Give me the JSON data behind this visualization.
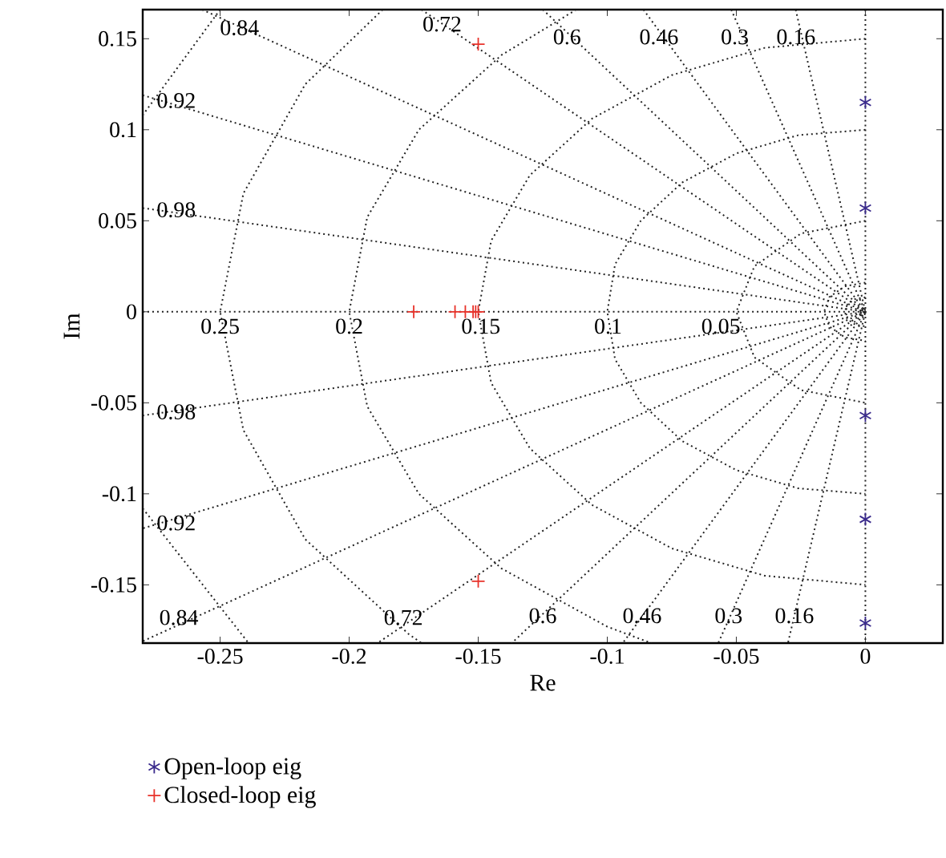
{
  "chart_data": {
    "type": "scatter",
    "xlabel": "Re",
    "ylabel": "Im",
    "xlim": [
      -0.28,
      0.03
    ],
    "ylim": [
      -0.182,
      0.166
    ],
    "xticks": [
      -0.25,
      -0.2,
      -0.15,
      -0.1,
      -0.05,
      0
    ],
    "yticks": [
      -0.15,
      -0.1,
      -0.05,
      0,
      0.05,
      0.1,
      0.15
    ],
    "legend": "bottom",
    "series": [
      {
        "type": "line",
        "color": "#222222",
        "line_style": "dotted",
        "marker": "none",
        "x": [
          -0.027,
          0,
          -0.03
        ],
        "values": [
          0.166,
          0,
          -0.182
        ]
      },
      {
        "type": "line",
        "color": "#222222",
        "line_style": "dotted",
        "marker": "none",
        "x": [
          -0.052,
          0,
          -0.057
        ],
        "values": [
          0.166,
          0,
          -0.182
        ]
      },
      {
        "type": "line",
        "color": "#222222",
        "line_style": "dotted",
        "marker": "none",
        "x": [
          -0.086,
          0,
          -0.094
        ],
        "values": [
          0.166,
          0,
          -0.182
        ]
      },
      {
        "type": "line",
        "color": "#222222",
        "line_style": "dotted",
        "marker": "none",
        "x": [
          -0.125,
          0,
          -0.137
        ],
        "values": [
          0.166,
          0,
          -0.182
        ]
      },
      {
        "type": "line",
        "color": "#222222",
        "line_style": "dotted",
        "marker": "none",
        "x": [
          -0.172,
          0,
          -0.189
        ],
        "values": [
          0.166,
          0,
          -0.182
        ]
      },
      {
        "type": "line",
        "color": "#222222",
        "line_style": "dotted",
        "marker": "none",
        "x": [
          -0.257,
          0,
          -0.28
        ],
        "values": [
          0.166,
          0,
          -0.181
        ]
      },
      {
        "type": "line",
        "color": "#222222",
        "line_style": "dotted",
        "marker": "none",
        "x": [
          -0.28,
          0,
          -0.28
        ],
        "values": [
          0.119,
          0,
          -0.119
        ]
      },
      {
        "type": "line",
        "color": "#222222",
        "line_style": "dotted",
        "marker": "none",
        "x": [
          -0.28,
          0,
          -0.28
        ],
        "values": [
          0.057,
          0,
          -0.057
        ]
      },
      {
        "type": "line",
        "color": "#222222",
        "line_style": "dotted",
        "marker": "none",
        "x": [
          -0.28,
          0
        ],
        "values": [
          0,
          0
        ]
      },
      {
        "type": "line",
        "color": "#222222",
        "line_style": "dotted",
        "marker": "none",
        "x": [
          0,
          0
        ],
        "values": [
          0.166,
          -0.182
        ]
      },
      {
        "type": "line",
        "color": "#222222",
        "line_style": "dotted",
        "marker": "none",
        "x": [
          -0.25,
          -0.28,
          null,
          -0.28,
          -0.239
        ],
        "values": [
          0.166,
          0.108,
          null,
          -0.108,
          -0.182
        ]
      },
      {
        "type": "line",
        "color": "#222222",
        "line_style": "dotted",
        "marker": "none",
        "x": [
          -0.187,
          -0.217,
          -0.241,
          -0.25,
          -0.241,
          -0.217,
          -0.177,
          -0.172
        ],
        "values": [
          0.166,
          0.125,
          0.065,
          0,
          -0.065,
          -0.125,
          -0.177,
          -0.182
        ]
      },
      {
        "type": "line",
        "color": "#222222",
        "line_style": "dotted",
        "marker": "none",
        "x": [
          -0.112,
          -0.141,
          -0.173,
          -0.193,
          -0.2,
          -0.193,
          -0.173,
          -0.141,
          -0.1,
          -0.083
        ],
        "values": [
          0.166,
          0.141,
          0.1,
          0.052,
          0,
          -0.052,
          -0.1,
          -0.141,
          -0.173,
          -0.182
        ]
      },
      {
        "type": "line",
        "color": "#222222",
        "line_style": "dotted",
        "marker": "none",
        "x": [
          0,
          -0.039,
          -0.075,
          -0.106,
          -0.13,
          -0.145,
          -0.15,
          -0.145,
          -0.13,
          -0.106,
          -0.075,
          -0.039,
          0
        ],
        "values": [
          0.15,
          0.145,
          0.13,
          0.106,
          0.075,
          0.039,
          0,
          -0.039,
          -0.075,
          -0.106,
          -0.13,
          -0.145,
          -0.15
        ]
      },
      {
        "type": "line",
        "color": "#222222",
        "line_style": "dotted",
        "marker": "none",
        "x": [
          0,
          -0.026,
          -0.05,
          -0.071,
          -0.087,
          -0.097,
          -0.1,
          -0.097,
          -0.087,
          -0.071,
          -0.05,
          -0.026,
          0
        ],
        "values": [
          0.1,
          0.097,
          0.087,
          0.071,
          0.05,
          0.026,
          0,
          -0.026,
          -0.05,
          -0.071,
          -0.087,
          -0.097,
          -0.1
        ]
      },
      {
        "type": "line",
        "color": "#222222",
        "line_style": "dotted",
        "marker": "none",
        "x": [
          0,
          -0.025,
          -0.043,
          -0.05,
          -0.043,
          -0.025,
          0
        ],
        "values": [
          0.05,
          0.043,
          0.025,
          0,
          -0.025,
          -0.043,
          -0.05
        ]
      },
      {
        "type": "line",
        "color": "#222222",
        "line_style": "dotted",
        "marker": "none",
        "x": [
          0,
          -0.008,
          -0.014,
          -0.016,
          -0.014,
          -0.008,
          0
        ],
        "values": [
          0.016,
          0.014,
          0.008,
          0,
          -0.008,
          -0.014,
          -0.016
        ]
      },
      {
        "type": "line",
        "color": "#222222",
        "line_style": "dotted",
        "marker": "none",
        "x": [
          0,
          -0.004,
          -0.007,
          -0.008,
          -0.007,
          -0.004,
          0
        ],
        "values": [
          0.008,
          0.007,
          0.004,
          0,
          -0.004,
          -0.007,
          -0.008
        ]
      },
      {
        "name": "Open-loop eig",
        "color": "#3a2a8c",
        "x": [
          0,
          0,
          0,
          0,
          0
        ],
        "values": [
          0.115,
          0.057,
          -0.057,
          -0.114,
          -0.171
        ]
      },
      {
        "name": "Closed-loop eig",
        "color": "#e8322a",
        "marker": "cross",
        "x": [
          -0.15,
          -0.15,
          -0.175,
          -0.159,
          -0.155,
          -0.152,
          -0.151,
          -0.15
        ],
        "values": [
          0.147,
          -0.148,
          0,
          0,
          0,
          0,
          0,
          0
        ]
      }
    ],
    "annotations": [
      {
        "text": "0.84",
        "x": -0.2425,
        "y": 0.156
      },
      {
        "text": "0.72",
        "x": -0.164,
        "y": 0.158
      },
      {
        "text": "0.6",
        "x": -0.1156,
        "y": 0.151
      },
      {
        "text": "0.46",
        "x": -0.08,
        "y": 0.151
      },
      {
        "text": "0.3",
        "x": -0.0506,
        "y": 0.151
      },
      {
        "text": "0.16",
        "x": -0.0269,
        "y": 0.151
      },
      {
        "text": "0.92",
        "x": -0.267,
        "y": 0.116
      },
      {
        "text": "0.98",
        "x": -0.267,
        "y": 0.056
      },
      {
        "text": "0.98",
        "x": -0.267,
        "y": -0.055
      },
      {
        "text": "0.92",
        "x": -0.267,
        "y": -0.116
      },
      {
        "text": "0.84",
        "x": -0.266,
        "y": -0.168
      },
      {
        "text": "0.72",
        "x": -0.179,
        "y": -0.168
      },
      {
        "text": "0.6",
        "x": -0.125,
        "y": -0.167
      },
      {
        "text": "0.46",
        "x": -0.0865,
        "y": -0.167
      },
      {
        "text": "0.3",
        "x": -0.053,
        "y": -0.167
      },
      {
        "text": "0.16",
        "x": -0.0275,
        "y": -0.167
      },
      {
        "text": "0.25",
        "x": -0.25,
        "y": -0.008
      },
      {
        "text": "0.2",
        "x": -0.2,
        "y": -0.008
      },
      {
        "text": "0.15",
        "x": -0.149,
        "y": -0.008
      },
      {
        "text": "0.1",
        "x": -0.0997,
        "y": -0.008
      },
      {
        "text": "0.05",
        "x": -0.056,
        "y": -0.008
      }
    ]
  }
}
